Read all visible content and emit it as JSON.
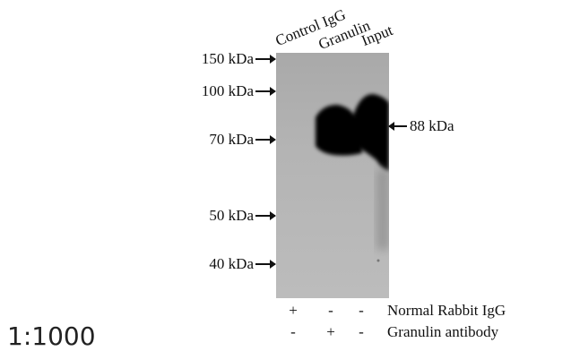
{
  "lanes": [
    "Control IgG",
    "Granulin",
    "Input"
  ],
  "markers": [
    {
      "label": "150 kDa",
      "id": "150"
    },
    {
      "label": "100 kDa",
      "id": "100"
    },
    {
      "label": "70 kDa",
      "id": "70"
    },
    {
      "label": "50 kDa",
      "id": "50"
    },
    {
      "label": "40 kDa",
      "id": "40"
    }
  ],
  "band_label": "88 kDa",
  "rows": [
    {
      "label": "Normal Rabbit IgG",
      "signs": [
        "+",
        "-",
        "-"
      ]
    },
    {
      "label": "Granulin antibody",
      "signs": [
        "-",
        "+",
        "-"
      ]
    }
  ],
  "dilution": "1:1000"
}
